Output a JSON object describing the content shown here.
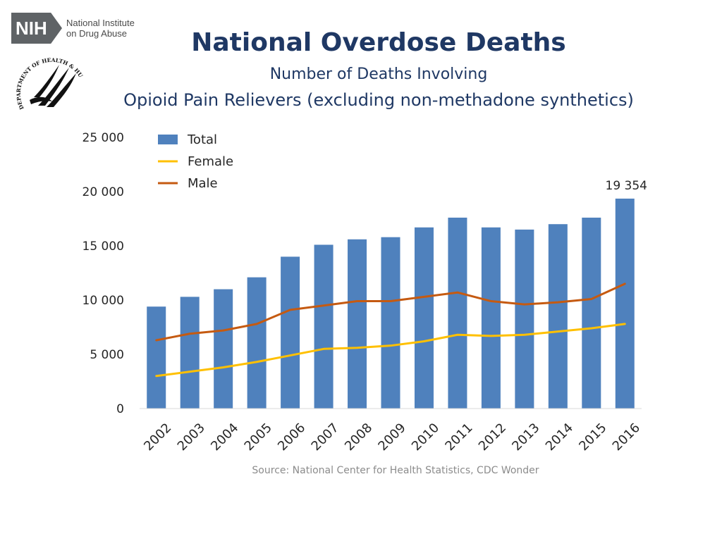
{
  "logo": {
    "badge_text": "NIH",
    "line1": "National Institute",
    "line2": "on Drug Abuse",
    "seal_text": "DEPARTMENT OF HEALTH & HUMAN SERVICES · USA"
  },
  "title": "National Overdose Deaths",
  "subtitle_line1": "Number of Deaths Involving",
  "subtitle_line2": "Opioid Pain Relievers (excluding non-methadone synthetics)",
  "source": "Source: National Center for Health Statistics, CDC Wonder",
  "chart_data": {
    "type": "bar",
    "categories": [
      "2002",
      "2003",
      "2004",
      "2005",
      "2006",
      "2007",
      "2008",
      "2009",
      "2010",
      "2011",
      "2012",
      "2013",
      "2014",
      "2015",
      "2016"
    ],
    "series": [
      {
        "name": "Total",
        "kind": "bar",
        "color": "#4f81bd",
        "values": [
          9400,
          10300,
          11000,
          12100,
          14000,
          15100,
          15600,
          15800,
          16700,
          17600,
          16700,
          16500,
          17000,
          17600,
          19354
        ]
      },
      {
        "name": "Female",
        "kind": "line",
        "color": "#ffc000",
        "values": [
          3000,
          3400,
          3800,
          4300,
          4900,
          5500,
          5600,
          5800,
          6200,
          6800,
          6700,
          6800,
          7100,
          7400,
          7800
        ]
      },
      {
        "name": "Male",
        "kind": "line",
        "color": "#c55a11",
        "values": [
          6300,
          6900,
          7200,
          7800,
          9100,
          9500,
          9900,
          9900,
          10300,
          10700,
          9900,
          9600,
          9800,
          10100,
          11500
        ]
      }
    ],
    "ylim": [
      0,
      25000
    ],
    "yticks": [
      0,
      5000,
      10000,
      15000,
      20000,
      25000
    ],
    "ytick_labels": [
      "0",
      "5 000",
      "10 000",
      "15 000",
      "20 000",
      "25 000"
    ],
    "data_labels": [
      {
        "category": "2016",
        "series": "Total",
        "text": "19 354"
      }
    ],
    "legend_position": "top-left",
    "grid": false
  }
}
